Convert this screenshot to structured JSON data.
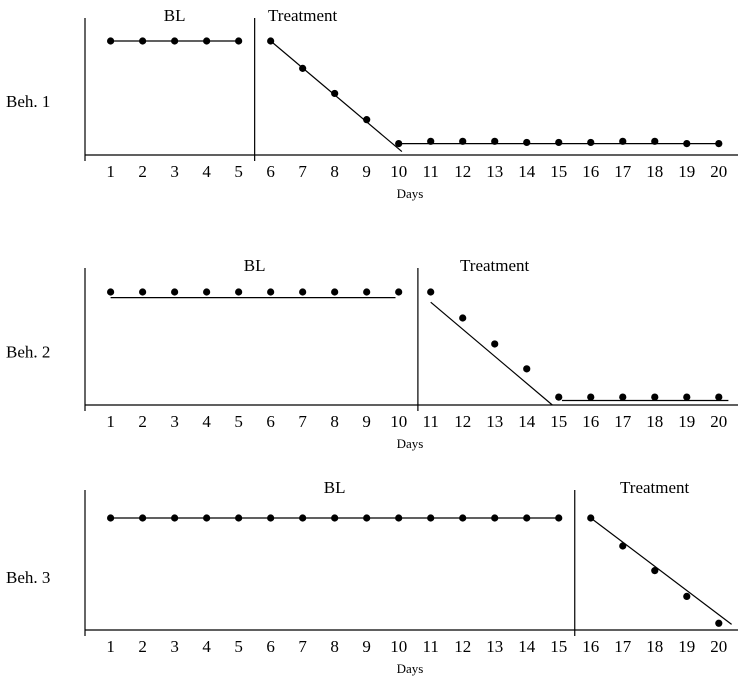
{
  "chart_data": [
    {
      "type": "scatter",
      "y_label": "Beh. 1",
      "x_label": "Days",
      "phases": [
        "BL",
        "Treatment"
      ],
      "phase_change": 5.5,
      "xlim": [
        0.2,
        20.6
      ],
      "ylim": [
        0,
        100
      ],
      "xticks": [
        1,
        2,
        3,
        4,
        5,
        6,
        7,
        8,
        9,
        10,
        11,
        12,
        13,
        14,
        15,
        16,
        17,
        18,
        19,
        20
      ],
      "x": [
        1,
        2,
        3,
        4,
        5,
        6,
        7,
        8,
        9,
        10,
        11,
        12,
        13,
        14,
        15,
        16,
        17,
        18,
        19,
        20
      ],
      "values": [
        100,
        100,
        100,
        100,
        100,
        100,
        76,
        54,
        31,
        10,
        12,
        12,
        12,
        11,
        11,
        11,
        12,
        12,
        10,
        10
      ],
      "trend_lines": [
        {
          "x": [
            1,
            5
          ],
          "values": [
            100,
            100
          ]
        },
        {
          "x": [
            6,
            10.1
          ],
          "values": [
            100,
            3
          ]
        },
        {
          "x": [
            10.1,
            20
          ],
          "values": [
            10,
            10
          ]
        }
      ]
    },
    {
      "type": "scatter",
      "y_label": "Beh. 2",
      "x_label": "Days",
      "phases": [
        "BL",
        "Treatment"
      ],
      "phase_change": 10.6,
      "xlim": [
        0.2,
        20.6
      ],
      "ylim": [
        0,
        100
      ],
      "xticks": [
        1,
        2,
        3,
        4,
        5,
        6,
        7,
        8,
        9,
        10,
        11,
        12,
        13,
        14,
        15,
        16,
        17,
        18,
        19,
        20
      ],
      "x": [
        1,
        2,
        3,
        4,
        5,
        6,
        7,
        8,
        9,
        10,
        11,
        12,
        13,
        14,
        15,
        16,
        17,
        18,
        19,
        20
      ],
      "values": [
        100,
        100,
        100,
        100,
        100,
        100,
        100,
        100,
        100,
        100,
        100,
        77,
        54,
        32,
        7,
        7,
        7,
        7,
        7,
        7
      ],
      "trend_lines": [
        {
          "x": [
            1,
            9.9
          ],
          "values": [
            95,
            95
          ]
        },
        {
          "x": [
            11,
            14.8
          ],
          "values": [
            91,
            0
          ]
        },
        {
          "x": [
            15.1,
            20.3
          ],
          "values": [
            4,
            4
          ]
        }
      ]
    },
    {
      "type": "scatter",
      "y_label": "Beh. 3",
      "x_label": "Days",
      "phases": [
        "BL",
        "Treatment"
      ],
      "phase_change": 15.5,
      "xlim": [
        0.2,
        20.6
      ],
      "ylim": [
        0,
        100
      ],
      "xticks": [
        1,
        2,
        3,
        4,
        5,
        6,
        7,
        8,
        9,
        10,
        11,
        12,
        13,
        14,
        15,
        16,
        17,
        18,
        19,
        20
      ],
      "x": [
        1,
        2,
        3,
        4,
        5,
        6,
        7,
        8,
        9,
        10,
        11,
        12,
        13,
        14,
        15,
        16,
        17,
        18,
        19,
        20
      ],
      "values": [
        100,
        100,
        100,
        100,
        100,
        100,
        100,
        100,
        100,
        100,
        100,
        100,
        100,
        100,
        100,
        100,
        75,
        53,
        30,
        6
      ],
      "trend_lines": [
        {
          "x": [
            1,
            15
          ],
          "values": [
            100,
            100
          ]
        },
        {
          "x": [
            16,
            20.4
          ],
          "values": [
            100,
            5
          ]
        }
      ]
    }
  ]
}
